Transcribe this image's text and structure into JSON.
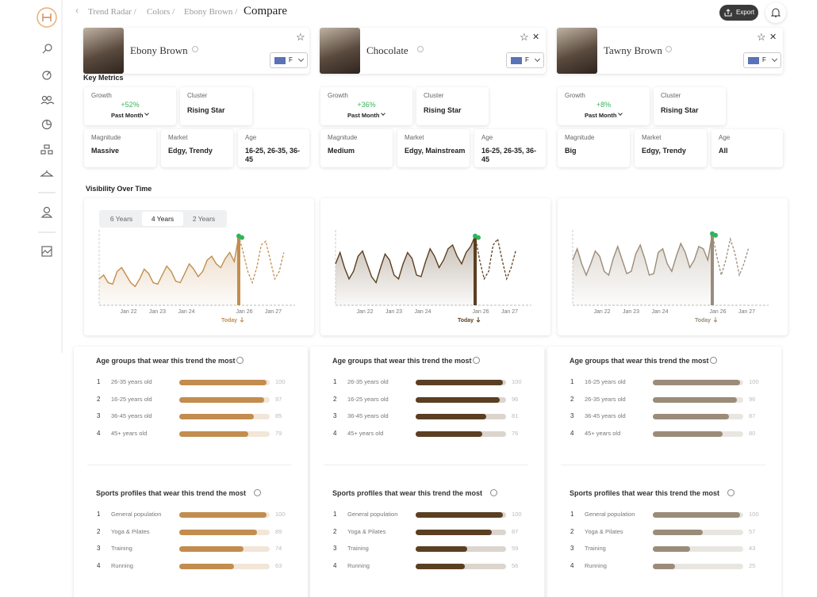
{
  "breadcrumb": [
    "Trend Radar /",
    "Colors /",
    "Ebony Brown /"
  ],
  "page_title": "Compare",
  "export": "Export",
  "key_metrics_heading": "Key Metrics",
  "visibility_heading": "Visibility Over Time",
  "range_options": [
    "6 Years",
    "4 Years",
    "2 Years"
  ],
  "selected_range": "4 Years",
  "metric_labels": {
    "growth": "Growth",
    "cluster": "Cluster",
    "magnitude": "Magnitude",
    "market": "Market",
    "age": "Age"
  },
  "x_labels": [
    "Jan 22",
    "Jan 23",
    "Jan 24",
    "Jan 26",
    "Jan 27"
  ],
  "today": "Today",
  "ylim": [
    0,
    100
  ],
  "bar_lim": [
    0,
    100
  ],
  "age_heading": "Age groups that wear this trend the most",
  "sports_heading": "Sports profiles that wear this trend the most",
  "trends": [
    {
      "name": "Ebony Brown",
      "filter": "F",
      "color": "#c28d4f",
      "growth": "+52%",
      "period": "Past Month",
      "cluster": "Rising Star",
      "magnitude": "Massive",
      "market": "Edgy, Trendy",
      "age": "16-25, 26-35, 36-45",
      "visibility": {
        "history": [
          35,
          40,
          30,
          28,
          45,
          50,
          40,
          30,
          25,
          35,
          48,
          42,
          30,
          28,
          40,
          52,
          45,
          32,
          30,
          42,
          55,
          48,
          38,
          45,
          60,
          65,
          55,
          50,
          62,
          70,
          58,
          92
        ],
        "forecast": [
          92,
          70,
          45,
          30,
          50,
          80,
          85,
          60,
          35,
          45,
          70
        ]
      },
      "age_groups": [
        {
          "rank": 1,
          "label": "26-35 years old",
          "value": 100
        },
        {
          "rank": 2,
          "label": "16-25 years old",
          "value": 97
        },
        {
          "rank": 3,
          "label": "36-45 years old",
          "value": 85
        },
        {
          "rank": 4,
          "label": "45+ years old",
          "value": 79
        }
      ],
      "sports": [
        {
          "rank": 1,
          "label": "General population",
          "value": 100
        },
        {
          "rank": 2,
          "label": "Yoga & Pilates",
          "value": 89
        },
        {
          "rank": 3,
          "label": "Training",
          "value": 74
        },
        {
          "rank": 4,
          "label": "Running",
          "value": 63
        }
      ]
    },
    {
      "name": "Chocolate",
      "filter": "F",
      "color": "#5b3f22",
      "growth": "+36%",
      "period": "Past Month",
      "cluster": "Rising Star",
      "magnitude": "Medium",
      "market": "Edgy, Mainstream",
      "age": "16-25, 26-35, 36-45",
      "visibility": {
        "history": [
          55,
          70,
          50,
          35,
          45,
          65,
          72,
          55,
          38,
          30,
          50,
          68,
          60,
          40,
          35,
          55,
          70,
          62,
          40,
          38,
          58,
          75,
          65,
          50,
          60,
          75,
          80,
          65,
          55,
          70,
          78,
          92
        ],
        "forecast": [
          92,
          60,
          35,
          45,
          80,
          88,
          60,
          35,
          50,
          72
        ]
      },
      "age_groups": [
        {
          "rank": 1,
          "label": "26-35 years old",
          "value": 100
        },
        {
          "rank": 2,
          "label": "16-25 years old",
          "value": 96
        },
        {
          "rank": 3,
          "label": "36-45 years old",
          "value": 81
        },
        {
          "rank": 4,
          "label": "45+ years old",
          "value": 76
        }
      ],
      "sports": [
        {
          "rank": 1,
          "label": "General population",
          "value": 100
        },
        {
          "rank": 2,
          "label": "Yoga & Pilates",
          "value": 87
        },
        {
          "rank": 3,
          "label": "Training",
          "value": 59
        },
        {
          "rank": 4,
          "label": "Running",
          "value": 56
        }
      ]
    },
    {
      "name": "Tawny Brown",
      "filter": "F",
      "color": "#9b8c79",
      "growth": "+8%",
      "period": "Past Month",
      "cluster": "Rising Star",
      "magnitude": "Big",
      "market": "Edgy, Trendy",
      "age": "All",
      "visibility": {
        "history": [
          60,
          75,
          55,
          40,
          55,
          72,
          65,
          45,
          40,
          62,
          78,
          60,
          42,
          45,
          68,
          80,
          62,
          40,
          42,
          70,
          75,
          55,
          45,
          65,
          82,
          70,
          50,
          60,
          78,
          75,
          60,
          95
        ],
        "forecast": [
          95,
          65,
          40,
          60,
          88,
          70,
          40,
          55,
          75
        ]
      },
      "age_groups": [
        {
          "rank": 1,
          "label": "16-25 years old",
          "value": 100
        },
        {
          "rank": 2,
          "label": "26-35 years old",
          "value": 96
        },
        {
          "rank": 3,
          "label": "36-45 years old",
          "value": 87
        },
        {
          "rank": 4,
          "label": "45+ years old",
          "value": 80
        }
      ],
      "sports": [
        {
          "rank": 1,
          "label": "General population",
          "value": 100
        },
        {
          "rank": 2,
          "label": "Yoga & Pilates",
          "value": 57
        },
        {
          "rank": 3,
          "label": "Training",
          "value": 43
        },
        {
          "rank": 4,
          "label": "Running",
          "value": 25
        }
      ]
    }
  ]
}
